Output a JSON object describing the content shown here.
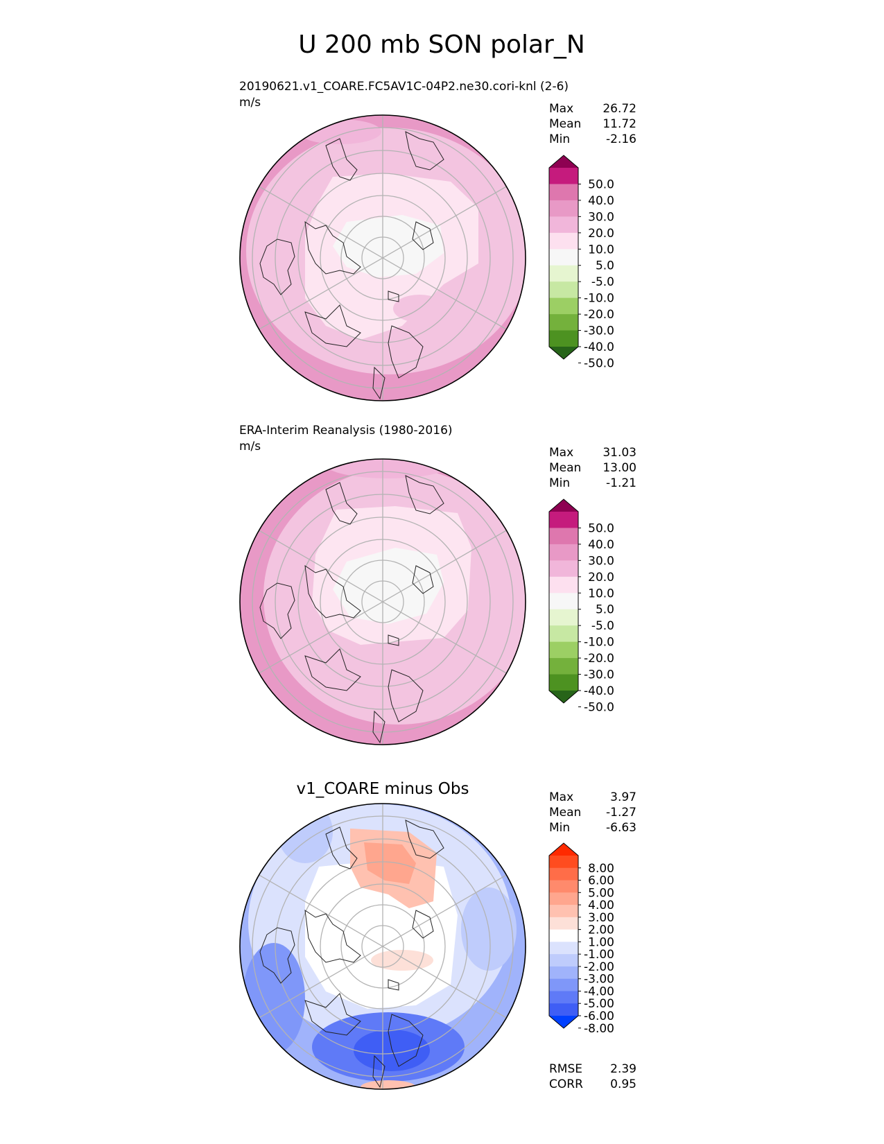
{
  "figure": {
    "title": "U 200 mb SON polar_N"
  },
  "chart_data": [
    {
      "type": "heatmap",
      "projection": "north-polar-stereographic",
      "title": "20190621.v1_COARE.FC5AV1C-04P2.ne30.cori-knl (2-6)",
      "units": "m/s",
      "stats": {
        "max_label": "Max",
        "max": "26.72",
        "mean_label": "Mean",
        "mean": "11.72",
        "min_label": "Min",
        "min": "-2.16"
      },
      "colorbar": {
        "levels": [
          "50.0",
          "40.0",
          "30.0",
          "20.0",
          "10.0",
          "5.0",
          "-5.0",
          "-10.0",
          "-20.0",
          "-30.0",
          "-40.0",
          "-50.0"
        ],
        "colors": [
          "#8e0152",
          "#c51b7d",
          "#de77ae",
          "#e899c6",
          "#f1b6da",
          "#fde0ef",
          "#f7f7f7",
          "#e6f5d0",
          "#c7e8a3",
          "#9ccf64",
          "#74b13c",
          "#4d9221",
          "#276419"
        ]
      },
      "field_colors": {
        "outer": "#e899c6",
        "band": "#f3c4e0",
        "inner": "#fde5f1",
        "core": "#f7f7f7"
      }
    },
    {
      "type": "heatmap",
      "projection": "north-polar-stereographic",
      "title": "ERA-Interim Reanalysis (1980-2016)",
      "units": "m/s",
      "stats": {
        "max_label": "Max",
        "max": "31.03",
        "mean_label": "Mean",
        "mean": "13.00",
        "min_label": "Min",
        "min": "-1.21"
      },
      "colorbar": {
        "levels": [
          "50.0",
          "40.0",
          "30.0",
          "20.0",
          "10.0",
          "5.0",
          "-5.0",
          "-10.0",
          "-20.0",
          "-30.0",
          "-40.0",
          "-50.0"
        ],
        "colors": [
          "#8e0152",
          "#c51b7d",
          "#de77ae",
          "#e899c6",
          "#f1b6da",
          "#fde0ef",
          "#f7f7f7",
          "#e6f5d0",
          "#c7e8a3",
          "#9ccf64",
          "#74b13c",
          "#4d9221",
          "#276419"
        ]
      },
      "field_colors": {
        "outer": "#e899c6",
        "band": "#f3c4e0",
        "inner": "#fde5f1",
        "core": "#f7f7f7"
      }
    },
    {
      "type": "heatmap",
      "projection": "north-polar-stereographic",
      "title": "v1_COARE minus Obs",
      "units": "",
      "stats": {
        "max_label": "Max",
        "max": "3.97",
        "mean_label": "Mean",
        "mean": "-1.27",
        "min_label": "Min",
        "min": "-6.63"
      },
      "colorbar": {
        "levels": [
          "8.00",
          "6.00",
          "5.00",
          "4.00",
          "3.00",
          "2.00",
          "1.00",
          "-1.00",
          "-2.00",
          "-3.00",
          "-4.00",
          "-5.00",
          "-6.00",
          "-8.00"
        ],
        "colors": [
          "#ff2a00",
          "#ff4c1f",
          "#ff6d48",
          "#ff8a6c",
          "#ffa68e",
          "#ffc1b0",
          "#fde0d8",
          "#ffffff",
          "#dbe2fd",
          "#bfccfc",
          "#a0b3fb",
          "#7f97f9",
          "#5f7af7",
          "#3f5ef5",
          "#0040ff"
        ]
      },
      "field_colors": {
        "outer": "#6f8af8",
        "band": "#bfccfc",
        "inner": "#ffffff",
        "warm": "#ffb39c"
      },
      "metrics": {
        "rmse_label": "RMSE",
        "rmse": "2.39",
        "corr_label": "CORR",
        "corr": "0.95"
      }
    }
  ]
}
